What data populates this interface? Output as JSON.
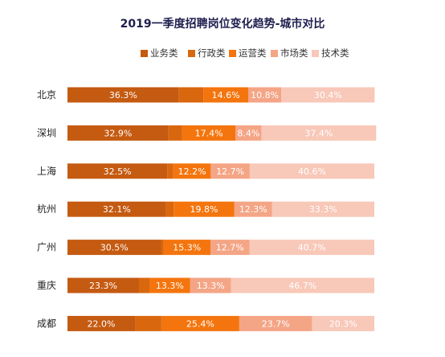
{
  "chart_data": {
    "type": "bar",
    "orientation": "horizontal",
    "stacked": true,
    "percent_stacked": true,
    "title": "2019一季度招聘岗位变化趋势-城市对比",
    "categories": [
      "北京",
      "深圳",
      "上海",
      "杭州",
      "广州",
      "重庆",
      "成都"
    ],
    "series": [
      {
        "name": "业务类",
        "color": "#c55a11",
        "values": [
          36.3,
          32.9,
          32.5,
          32.1,
          30.5,
          23.3,
          22.0
        ],
        "labels": [
          "36.3%",
          "32.9%",
          "32.5%",
          "32.1%",
          "30.5%",
          "23.3%",
          "22.0%"
        ]
      },
      {
        "name": "行政类",
        "color": "#d9670e",
        "values": [
          8.0,
          4.5,
          2.0,
          2.5,
          0.8,
          3.4,
          8.6
        ],
        "labels": [
          "",
          "",
          "",
          "",
          "",
          "",
          ""
        ]
      },
      {
        "name": "运营类",
        "color": "#f4750e",
        "values": [
          14.6,
          17.4,
          12.2,
          19.8,
          15.3,
          13.3,
          25.4
        ],
        "labels": [
          "14.6%",
          "17.4%",
          "12.2%",
          "19.8%",
          "15.3%",
          "13.3%",
          "25.4%"
        ]
      },
      {
        "name": "市场类",
        "color": "#f4a586",
        "values": [
          10.8,
          8.4,
          12.7,
          12.3,
          12.7,
          13.3,
          23.7
        ],
        "labels": [
          "10.8%",
          "8.4%",
          "12.7%",
          "12.3%",
          "12.7%",
          "13.3%",
          "23.7%"
        ]
      },
      {
        "name": "技术类",
        "color": "#f8c8b8",
        "values": [
          30.4,
          37.4,
          40.6,
          33.3,
          40.7,
          46.7,
          20.3
        ],
        "labels": [
          "30.4%",
          "37.4%",
          "40.6%",
          "33.3%",
          "40.7%",
          "46.7%",
          "20.3%"
        ]
      }
    ],
    "xlim": [
      0,
      100
    ],
    "grid": false,
    "legend_position": "top-right"
  }
}
